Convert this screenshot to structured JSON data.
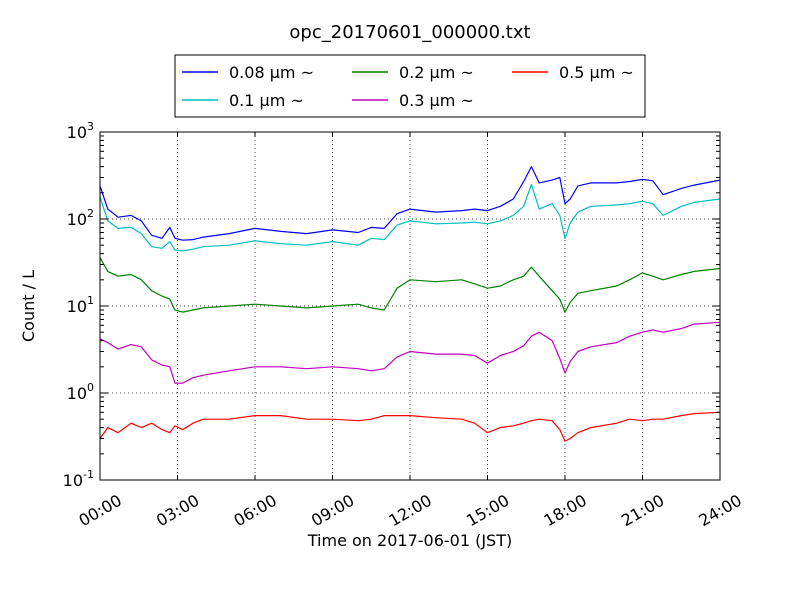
{
  "chart_data": {
    "type": "line",
    "title": "opc_20170601_000000.txt",
    "xlabel": "Time on 2017-06-01 (JST)",
    "ylabel": "Count / L",
    "yscale": "log",
    "ylim": [
      0.1,
      1000
    ],
    "xlim": [
      "2017-06-01 00:00",
      "2017-06-02 00:00"
    ],
    "x_ticks": [
      "00:00",
      "03:00",
      "06:00",
      "09:00",
      "12:00",
      "15:00",
      "18:00",
      "21:00",
      "24:00"
    ],
    "y_ticks": [
      {
        "base": "10",
        "exp": "-1"
      },
      {
        "base": "10",
        "exp": "0"
      },
      {
        "base": "10",
        "exp": "1"
      },
      {
        "base": "10",
        "exp": "2"
      },
      {
        "base": "10",
        "exp": "3"
      }
    ],
    "grid": true,
    "legend_position": "top-center",
    "x_hours": [
      0,
      0.3,
      0.7,
      1.2,
      1.6,
      2.0,
      2.4,
      2.7,
      2.9,
      3.2,
      3.6,
      4.0,
      5.0,
      6.0,
      7.0,
      8.0,
      9.0,
      10.0,
      10.5,
      11.0,
      11.5,
      12.0,
      13.0,
      14.0,
      14.5,
      15.0,
      15.5,
      16.0,
      16.4,
      16.7,
      17.0,
      17.5,
      17.8,
      18.0,
      18.2,
      18.5,
      19.0,
      20.0,
      20.5,
      21.0,
      21.4,
      21.8,
      22.5,
      23.0,
      24.0
    ],
    "series": [
      {
        "name": "0.08 μm ~",
        "color": "#0000ff",
        "values": [
          240,
          130,
          105,
          110,
          95,
          65,
          60,
          80,
          60,
          57,
          58,
          62,
          68,
          78,
          72,
          68,
          75,
          70,
          80,
          78,
          115,
          130,
          120,
          125,
          130,
          125,
          140,
          170,
          270,
          400,
          260,
          280,
          300,
          150,
          170,
          240,
          260,
          260,
          270,
          285,
          275,
          190,
          225,
          245,
          280
        ]
      },
      {
        "name": "0.1 μm ~",
        "color": "#00bfbf",
        "values": [
          180,
          95,
          78,
          80,
          68,
          48,
          46,
          55,
          44,
          43,
          45,
          48,
          50,
          56,
          52,
          50,
          55,
          50,
          60,
          58,
          85,
          95,
          88,
          90,
          92,
          88,
          95,
          110,
          140,
          250,
          130,
          150,
          110,
          60,
          90,
          120,
          140,
          145,
          150,
          160,
          150,
          110,
          140,
          155,
          170
        ]
      },
      {
        "name": "0.2 μm ~",
        "color": "#008000",
        "values": [
          36,
          25,
          22,
          23,
          20,
          15,
          13,
          12,
          9.0,
          8.5,
          9.0,
          9.5,
          10.0,
          10.5,
          10.0,
          9.5,
          10.0,
          10.5,
          9.5,
          9.0,
          16.0,
          20.0,
          19.0,
          20.0,
          18.0,
          16.0,
          17.0,
          20.0,
          22.0,
          28.0,
          22.0,
          15.0,
          12.0,
          8.5,
          11.0,
          14.0,
          15.0,
          17.0,
          20.0,
          24.0,
          22.0,
          20.0,
          23.0,
          25.0,
          27.0
        ]
      },
      {
        "name": "0.3 μm ~",
        "color": "#bf00bf",
        "values": [
          4.2,
          3.8,
          3.2,
          3.6,
          3.4,
          2.4,
          2.1,
          2.0,
          1.3,
          1.3,
          1.5,
          1.6,
          1.8,
          2.0,
          2.0,
          1.9,
          2.0,
          1.9,
          1.8,
          1.9,
          2.6,
          3.0,
          2.8,
          2.8,
          2.7,
          2.2,
          2.7,
          3.0,
          3.5,
          4.5,
          5.0,
          4.0,
          2.5,
          1.7,
          2.3,
          3.0,
          3.4,
          3.8,
          4.5,
          5.0,
          5.3,
          5.0,
          5.5,
          6.2,
          6.5
        ]
      },
      {
        "name": "0.5 μm ~",
        "color": "#ff0000",
        "values": [
          0.3,
          0.4,
          0.35,
          0.45,
          0.4,
          0.45,
          0.38,
          0.35,
          0.42,
          0.38,
          0.45,
          0.5,
          0.5,
          0.55,
          0.55,
          0.5,
          0.5,
          0.48,
          0.5,
          0.55,
          0.55,
          0.55,
          0.52,
          0.5,
          0.45,
          0.35,
          0.4,
          0.42,
          0.45,
          0.48,
          0.5,
          0.48,
          0.38,
          0.28,
          0.3,
          0.35,
          0.4,
          0.45,
          0.5,
          0.48,
          0.5,
          0.5,
          0.55,
          0.58,
          0.6
        ]
      }
    ]
  }
}
